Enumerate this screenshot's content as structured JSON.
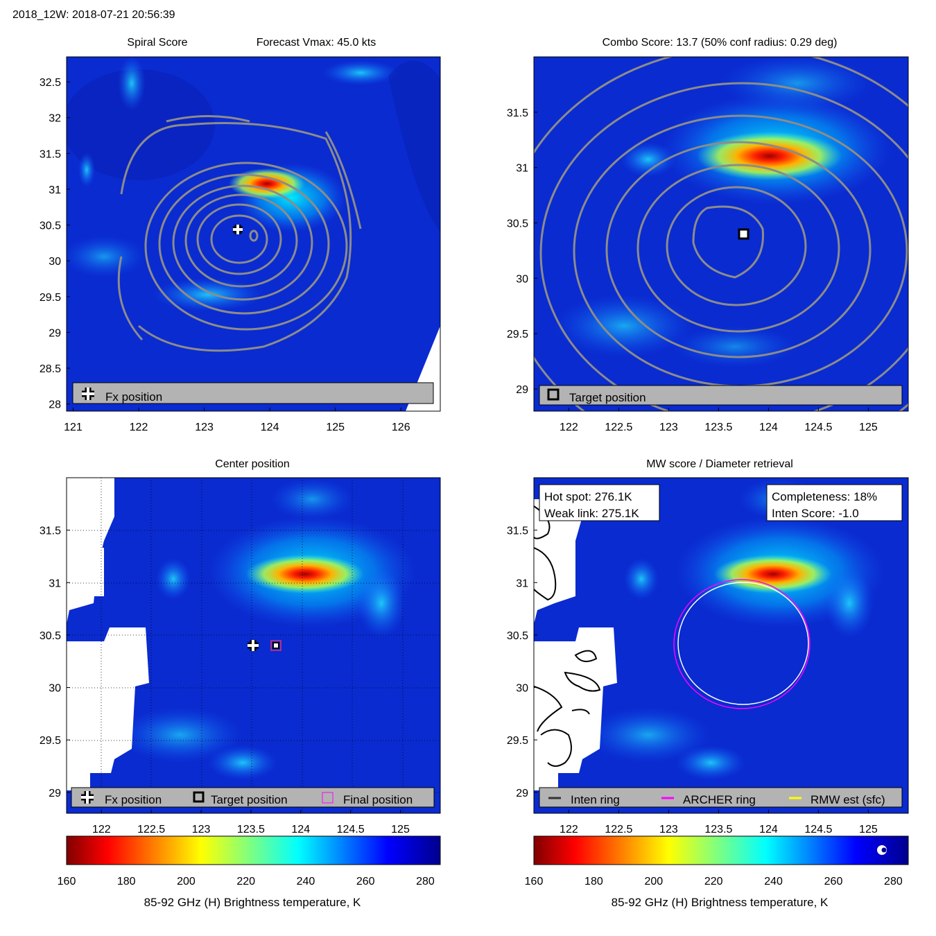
{
  "header": "2018_12W: 2018-07-21 20:56:39",
  "colors": {
    "field_blue": "#0a2bd0",
    "contour_gray": "#8c8c8c",
    "legend_bg": "#b3b3b3",
    "archer_ring": "#ff00ff",
    "inten_ring": "#000000",
    "rmw_ring": "#ffff00"
  },
  "chart_data": [
    {
      "id": "spiral",
      "type": "heatmap",
      "title_left": "Spiral Score",
      "title_right": "Forecast Vmax: 45.0 kts",
      "xlim": [
        120.9,
        126.6
      ],
      "ylim": [
        27.9,
        32.85
      ],
      "xticks": [
        "121",
        "122",
        "123",
        "124",
        "125",
        "126"
      ],
      "yticks": [
        "28",
        "28.5",
        "29",
        "29.5",
        "30",
        "30.5",
        "31",
        "31.5",
        "32",
        "32.5"
      ],
      "legend": [
        {
          "symbol": "plus-icon",
          "label": "Fx position"
        }
      ],
      "markers": [
        {
          "type": "fx",
          "x": 123.5,
          "y": 30.4
        }
      ]
    },
    {
      "id": "combo",
      "type": "heatmap",
      "title": "Combo Score: 13.7  (50% conf radius: 0.29 deg)",
      "xlim": [
        121.65,
        125.4
      ],
      "ylim": [
        28.8,
        32.0
      ],
      "xticks": [
        "122",
        "122.5",
        "123",
        "123.5",
        "124",
        "124.5",
        "125"
      ],
      "yticks": [
        "29",
        "29.5",
        "30",
        "30.5",
        "31",
        "31.5"
      ],
      "legend": [
        {
          "symbol": "square-icon",
          "label": "Target position"
        }
      ],
      "markers": [
        {
          "type": "target",
          "x": 123.75,
          "y": 30.4
        }
      ]
    },
    {
      "id": "center",
      "type": "heatmap",
      "title": "Center position",
      "xlim": [
        121.65,
        125.4
      ],
      "ylim": [
        28.8,
        32.0
      ],
      "xticks": [
        "122",
        "122.5",
        "123",
        "123.5",
        "124",
        "124.5",
        "125"
      ],
      "yticks": [
        "29",
        "29.5",
        "30",
        "30.5",
        "31",
        "31.5"
      ],
      "grid": true,
      "legend": [
        {
          "symbol": "plus-icon",
          "label": "Fx position"
        },
        {
          "symbol": "square-icon",
          "label": "Target position"
        },
        {
          "symbol": "magenta-square-icon",
          "label": "Final position"
        }
      ],
      "markers": [
        {
          "type": "fx",
          "x": 123.5,
          "y": 30.4
        },
        {
          "type": "target",
          "x": 123.73,
          "y": 30.4
        }
      ]
    },
    {
      "id": "mw",
      "type": "heatmap",
      "title": "MW score / Diameter retrieval",
      "xlim": [
        121.65,
        125.4
      ],
      "ylim": [
        28.8,
        32.0
      ],
      "xticks": [
        "122",
        "122.5",
        "123",
        "123.5",
        "124",
        "124.5",
        "125"
      ],
      "yticks": [
        "29",
        "29.5",
        "30",
        "30.5",
        "31",
        "31.5"
      ],
      "info_left": [
        "Hot spot: 276.1K",
        "Weak link: 275.1K"
      ],
      "info_right": [
        "Completeness: 18%",
        "Inten Score: -1.0"
      ],
      "legend": [
        {
          "symbol": "inten-line-icon",
          "label": "Inten ring"
        },
        {
          "symbol": "archer-line-icon",
          "label": "ARCHER ring"
        },
        {
          "symbol": "rmw-line-icon",
          "label": "RMW est (sfc)"
        }
      ],
      "rings": [
        {
          "name": "Inten ring",
          "color": "#ffffff",
          "cx": 123.73,
          "cy": 30.4,
          "r": 0.64
        },
        {
          "name": "ARCHER ring",
          "color": "#ff00ff",
          "cx": 123.73,
          "cy": 30.4,
          "r": 0.67
        }
      ]
    }
  ],
  "colorbar": {
    "ticks": [
      "160",
      "180",
      "200",
      "220",
      "240",
      "260",
      "280"
    ],
    "range": [
      160,
      285
    ],
    "label": "85-92 GHz (H) Brightness temperature, K"
  }
}
